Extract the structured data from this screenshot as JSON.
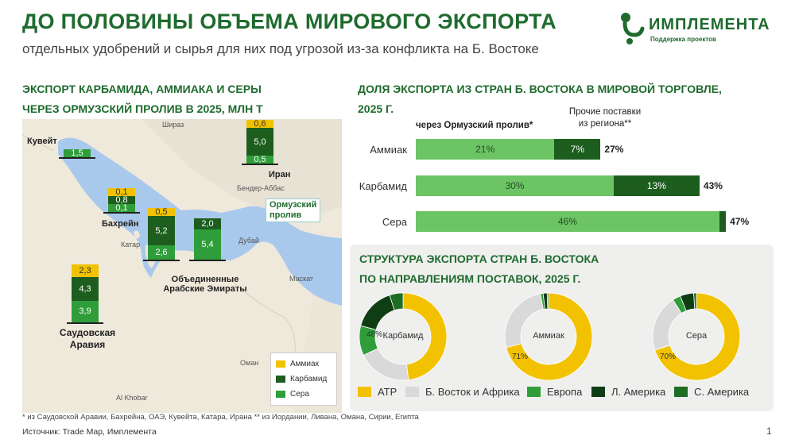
{
  "title": "ДО ПОЛОВИНЫ ОБЪЕМА МИРОВОГО ЭКСПОРТА",
  "subtitle": "отдельных удобрений и сырья для них под угрозой из-за конфликта на Б. Востоке",
  "logo": {
    "name": "ИМПЛЕМЕНТА",
    "tagline": "Поддержка проектов"
  },
  "colors": {
    "brand": "#1f6b2e",
    "ammonia": "#f2c200",
    "carbamide": "#1d5e1f",
    "sulfur": "#2f9e3a",
    "light_green": "#6cc464",
    "gray": "#d9d9d9"
  },
  "map_section": {
    "title_line1": "ЭКСПОРТ КАРБАМИДА, АММИАКА И СЕРЫ",
    "title_line2": "ЧЕРЕЗ ОРМУЗСКИЙ ПРОЛИВ В 2025, МЛН Т",
    "hormuz_line1": "Ормузский",
    "hormuz_line2": "пролив",
    "city_labels": [
      "Шираз",
      "Бендер-Аббас",
      "Дубай",
      "Маскат",
      "Оман",
      "Катар",
      "Al Khobar"
    ],
    "legend": [
      "Аммиак",
      "Карбамид",
      "Сера"
    ]
  },
  "chart_data": [
    {
      "type": "bar",
      "title": "ЭКСПОРТ КАРБАМИДА, АММИАКА И СЕРЫ ЧЕРЕЗ ОРМУЗСКИЙ ПРОЛИВ В 2025, МЛН Т",
      "stacked": true,
      "categories": [
        "Кувейт",
        "Бахрейн",
        "Катар",
        "Объединенные Арабские Эмираты",
        "Саудовская Аравия",
        "Иран"
      ],
      "series": [
        {
          "name": "Аммиак",
          "values": [
            null,
            0.1,
            0.5,
            null,
            2.3,
            0.6
          ],
          "labels": [
            "",
            "0,1",
            "0,5",
            "",
            "2,3",
            "0,6"
          ]
        },
        {
          "name": "Карбамид",
          "values": [
            null,
            0.8,
            5.2,
            2.0,
            4.3,
            5.0
          ],
          "labels": [
            "",
            "0,8",
            "5,2",
            "2,0",
            "4,3",
            "5,0"
          ]
        },
        {
          "name": "Сера",
          "values": [
            1.5,
            0.1,
            2.6,
            5.4,
            3.9,
            0.5
          ],
          "labels": [
            "1,5",
            "0,1",
            "2,6",
            "5,4",
            "3,9",
            "0,5"
          ]
        }
      ]
    },
    {
      "type": "bar",
      "orientation": "horizontal",
      "stacked": true,
      "title": "ДОЛЯ ЭКСПОРТА ИЗ СТРАН Б. ВОСТОКА В МИРОВОЙ ТОРГОВЛЕ, 2025 Г.",
      "title_line1": "ДОЛЯ ЭКСПОРТА ИЗ СТРАН Б. ВОСТОКА В МИРОВОЙ ТОРГОВЛЕ,",
      "title_line2": "2025 Г.",
      "categories": [
        "Аммиак",
        "Карбамид",
        "Сера"
      ],
      "series": [
        {
          "name": "через Ормузский пролив*",
          "values": [
            21,
            30,
            46
          ]
        },
        {
          "name": "Прочие поставки из региона**",
          "name_line1": "Прочие поставки",
          "name_line2": "из региона**",
          "values": [
            7,
            13,
            1
          ]
        }
      ],
      "totals": [
        "27%",
        "43%",
        "47%"
      ],
      "unit": "%"
    },
    {
      "type": "pie",
      "donut": true,
      "title": "СТРУКТУРА ЭКСПОРТА СТРАН Б. ВОСТОКА ПО НАПРАВЛЕНИЯМ ПОСТАВОК, 2025 Г.",
      "title_line1": "СТРУКТУРА ЭКСПОРТА СТРАН Б. ВОСТОКА",
      "title_line2": "ПО НАПРАВЛЕНИЯМ ПОСТАВОК, 2025 Г.",
      "legend": [
        "АТР",
        "Б. Восток и Африка",
        "Европа",
        "Л. Америка",
        "С. Америка"
      ],
      "legend_colors": [
        "#f2c200",
        "#d9d9d9",
        "#2f9e3a",
        "#0f3d14",
        "#1d6e24"
      ],
      "charts": [
        {
          "name": "Карбамид",
          "values": [
            48,
            20,
            11,
            16,
            5
          ],
          "label": "48%"
        },
        {
          "name": "Аммиак",
          "values": [
            71,
            26,
            1,
            1.5,
            0.5
          ],
          "label": "71%"
        },
        {
          "name": "Сера",
          "values": [
            70,
            21,
            3,
            5,
            1
          ],
          "label": "70%"
        }
      ]
    }
  ],
  "footnote": "* из Саудовской Аравии, Бахрейна, ОАЭ, Кувейта, Катара, Ирана ** из Иордании, Ливана, Омана, Сирии, Египта",
  "source": "Источник: Trade Map, Имплемента",
  "page_number": "1"
}
